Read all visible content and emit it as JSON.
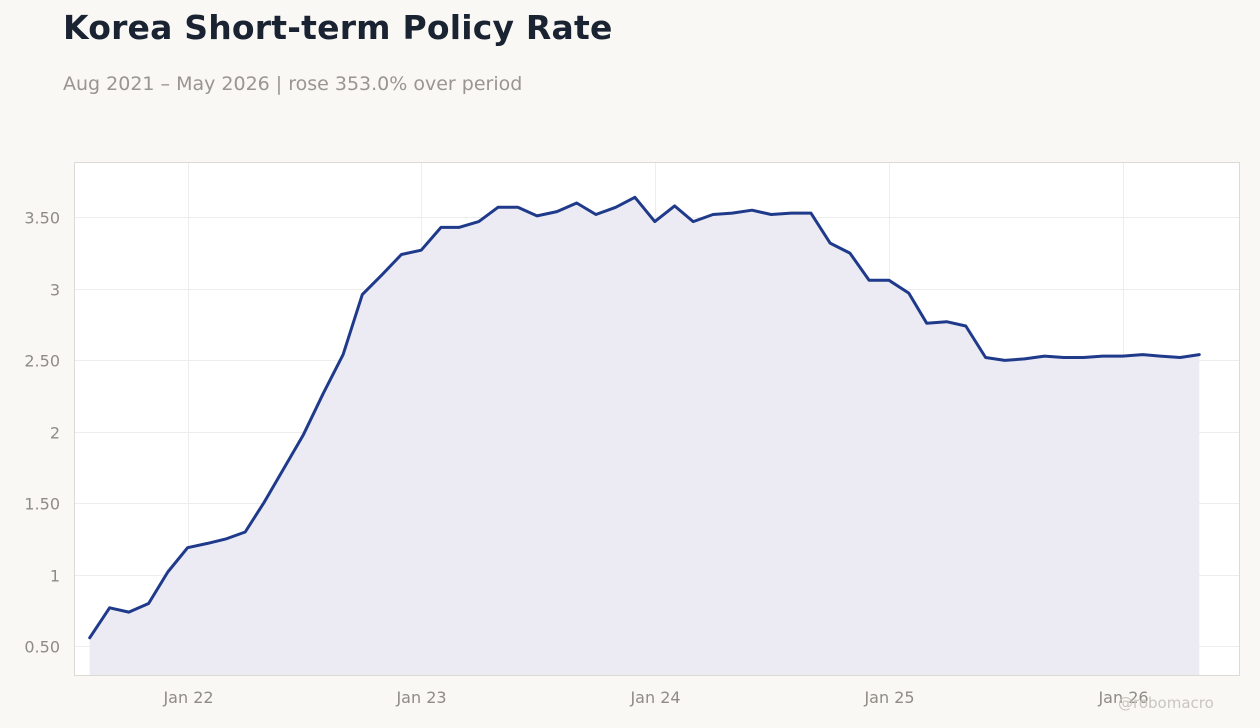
{
  "header": {
    "title": "Korea Short-term Policy Rate",
    "subtitle": "Aug 2021 – May 2026 | rose 353.0% over period"
  },
  "watermark": "@robomacro",
  "colors": {
    "line": "#1f3a8a",
    "area": "#ecebf3",
    "grid": "#ededed",
    "tick_text": "#8f8b85",
    "frame": "#dcdad5",
    "plot_bg": "#ffffff"
  },
  "chart_data": {
    "type": "area",
    "title": "Korea Short-term Policy Rate",
    "xlabel": "",
    "ylabel": "",
    "grid": true,
    "legend": "none",
    "ylim": [
      0.3,
      3.88
    ],
    "xlim": [
      "2021-07-09",
      "2026-07-02"
    ],
    "y_ticks": [
      {
        "value": 0.5,
        "label": "0.50"
      },
      {
        "value": 1,
        "label": "1"
      },
      {
        "value": 1.5,
        "label": "1.50"
      },
      {
        "value": 2,
        "label": "2"
      },
      {
        "value": 2.5,
        "label": "2.50"
      },
      {
        "value": 3,
        "label": "3"
      },
      {
        "value": 3.5,
        "label": "3.50"
      }
    ],
    "x_ticks": [
      {
        "date": "2022-01-01",
        "label": "Jan 22"
      },
      {
        "date": "2023-01-01",
        "label": "Jan 23"
      },
      {
        "date": "2024-01-01",
        "label": "Jan 24"
      },
      {
        "date": "2025-01-01",
        "label": "Jan 25"
      },
      {
        "date": "2026-01-01",
        "label": "Jan 26"
      }
    ],
    "series": [
      {
        "x": [
          "2021-08-01",
          "2021-09-01",
          "2021-10-01",
          "2021-11-01",
          "2021-12-01",
          "2022-01-01",
          "2022-02-01",
          "2022-03-01",
          "2022-04-01",
          "2022-05-01",
          "2022-06-01",
          "2022-07-01",
          "2022-08-01",
          "2022-09-01",
          "2022-10-01",
          "2022-11-01",
          "2022-12-01",
          "2023-01-01",
          "2023-02-01",
          "2023-03-01",
          "2023-04-01",
          "2023-05-01",
          "2023-06-01",
          "2023-07-01",
          "2023-08-01",
          "2023-09-01",
          "2023-10-01",
          "2023-11-01",
          "2023-12-01",
          "2024-01-01",
          "2024-02-01",
          "2024-03-01",
          "2024-04-01",
          "2024-05-01",
          "2024-06-01",
          "2024-07-01",
          "2024-08-01",
          "2024-09-01",
          "2024-10-01",
          "2024-11-01",
          "2024-12-01",
          "2025-01-01",
          "2025-02-01",
          "2025-03-01",
          "2025-04-01",
          "2025-05-01",
          "2025-06-01",
          "2025-07-01",
          "2025-08-01",
          "2025-09-01",
          "2025-10-01",
          "2025-11-01",
          "2025-12-01",
          "2026-01-01",
          "2026-02-01",
          "2026-03-01",
          "2026-04-01",
          "2026-05-01"
        ],
        "values": [
          0.56,
          0.77,
          0.74,
          0.8,
          1.02,
          1.19,
          1.22,
          1.25,
          1.3,
          1.51,
          1.75,
          1.98,
          2.27,
          2.54,
          2.96,
          3.1,
          3.24,
          3.27,
          3.43,
          3.43,
          3.47,
          3.57,
          3.57,
          3.51,
          3.54,
          3.6,
          3.52,
          3.57,
          3.64,
          3.47,
          3.58,
          3.47,
          3.52,
          3.53,
          3.55,
          3.52,
          3.53,
          3.53,
          3.32,
          3.25,
          3.06,
          3.06,
          2.97,
          2.76,
          2.77,
          2.74,
          2.52,
          2.5,
          2.51,
          2.53,
          2.52,
          2.52,
          2.53,
          2.53,
          2.54,
          2.53,
          2.52,
          2.54
        ]
      }
    ]
  }
}
